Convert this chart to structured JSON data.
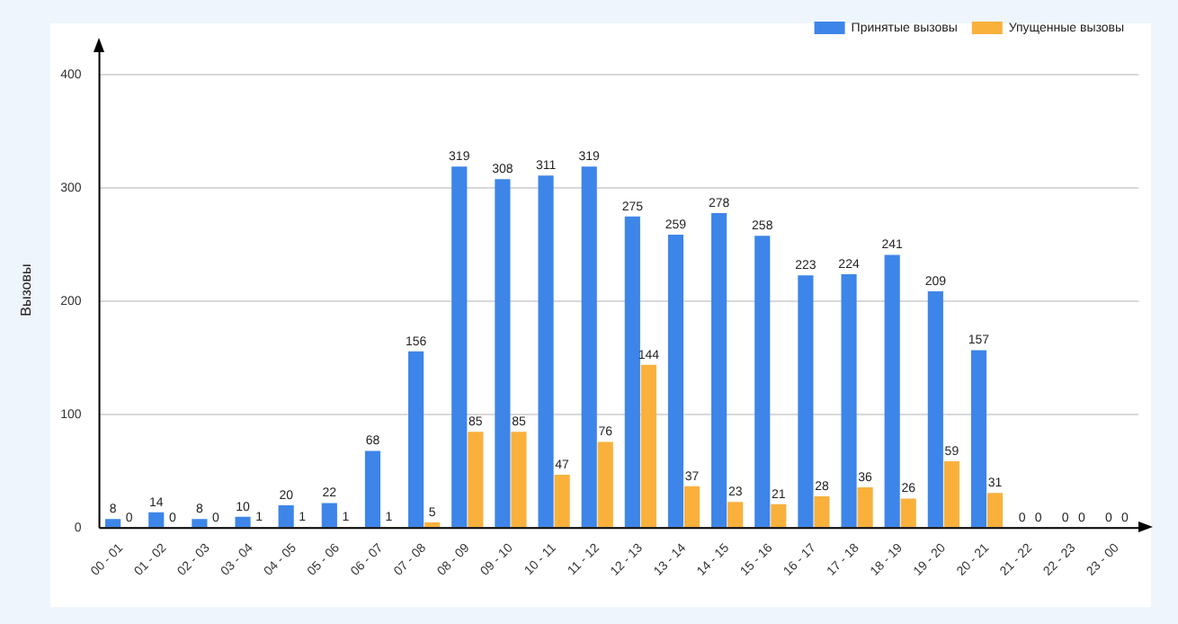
{
  "chart_data": {
    "type": "bar",
    "ylabel": "Вызовы",
    "categories": [
      "00 - 01",
      "01 - 02",
      "02 - 03",
      "03 - 04",
      "04 - 05",
      "05 - 06",
      "06 - 07",
      "07 - 08",
      "08 - 09",
      "09 - 10",
      "10 - 11",
      "11 - 12",
      "12 - 13",
      "13 - 14",
      "14 - 15",
      "15 - 16",
      "16 - 17",
      "17 - 18",
      "18 - 19",
      "19 - 20",
      "20 - 21",
      "21 - 22",
      "22 - 23",
      "23 - 00"
    ],
    "series": [
      {
        "name": "Принятые вызовы",
        "color": "#3d85e8",
        "values": [
          8,
          14,
          8,
          10,
          20,
          22,
          68,
          156,
          319,
          308,
          311,
          319,
          275,
          259,
          278,
          258,
          223,
          224,
          241,
          209,
          157,
          0,
          0,
          0
        ]
      },
      {
        "name": "Упущенные вызовы",
        "color": "#f9b13c",
        "values": [
          0,
          0,
          0,
          1,
          1,
          1,
          1,
          5,
          85,
          85,
          47,
          76,
          144,
          37,
          23,
          21,
          28,
          36,
          26,
          59,
          31,
          0,
          0,
          0
        ]
      }
    ],
    "ylim": [
      0,
      420
    ],
    "yticks": [
      0,
      100,
      200,
      300,
      400
    ],
    "grid": "y",
    "legend": "top right",
    "data_labels": true
  }
}
